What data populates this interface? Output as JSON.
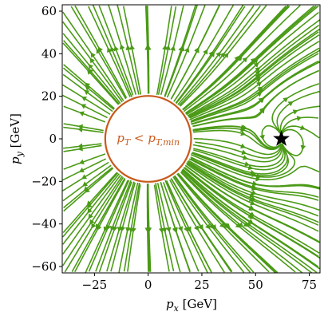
{
  "chart_data": {
    "type": "streamplot",
    "xlabel_main": "p",
    "xlabel_sub": "x",
    "xlabel_unit": " [GeV]",
    "ylabel_main": "p",
    "ylabel_sub": "y",
    "ylabel_unit": " [GeV]",
    "xlim": [
      -40,
      80
    ],
    "ylim": [
      -63,
      63
    ],
    "x_ticks": [
      -25,
      0,
      25,
      50,
      75
    ],
    "y_ticks": [
      -60,
      -40,
      -20,
      0,
      20,
      40,
      60
    ],
    "x_tick_labels": [
      "−25",
      "0",
      "25",
      "50",
      "75"
    ],
    "y_tick_labels": [
      "−60",
      "−40",
      "−20",
      "0",
      "20",
      "40",
      "60"
    ],
    "excluded_region": {
      "shape": "circle",
      "center": [
        0,
        0
      ],
      "radius": 20,
      "label_main": "p",
      "label_sub": "T",
      "label_rel": " < ",
      "label_main2": "p",
      "label_sub2": "T,min"
    },
    "marker": {
      "shape": "star",
      "x": 62,
      "y": 0
    },
    "grid": false,
    "legend": "none"
  },
  "colors": {
    "stream": "#4a9a16",
    "circle": "#c85a1c",
    "label": "#c85a1c",
    "marker": "#000000",
    "axes": "#000000"
  }
}
